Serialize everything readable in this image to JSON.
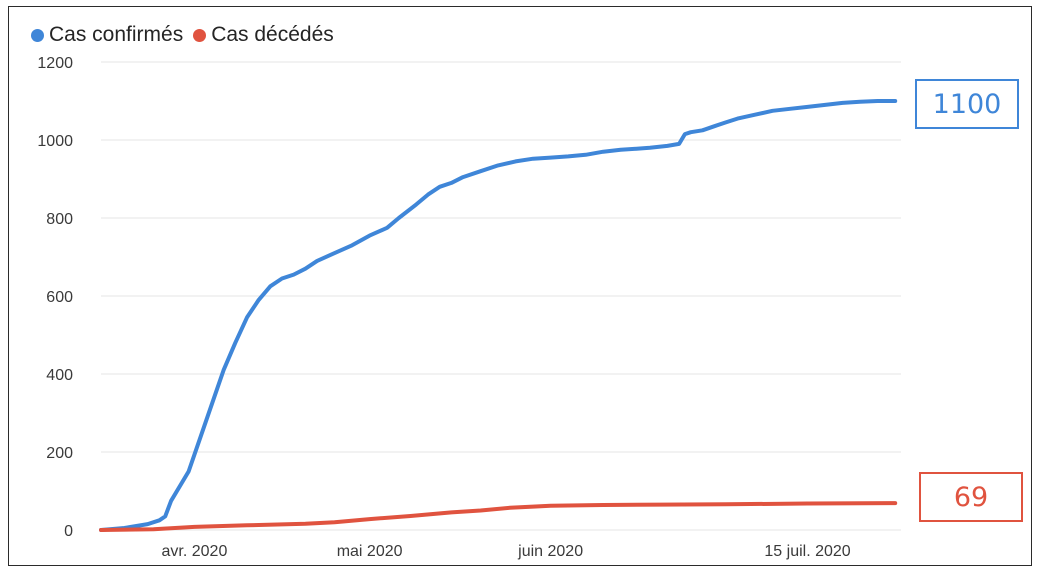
{
  "chart_data": {
    "type": "line",
    "title": "",
    "xlabel": "",
    "ylabel": "",
    "ylim": [
      0,
      1200
    ],
    "yticks": [
      0,
      200,
      400,
      600,
      800,
      1000,
      1200
    ],
    "xlim": [
      "2020-03-16",
      "2020-07-31"
    ],
    "xticks": [
      {
        "date": "2020-04-01",
        "label": "avr. 2020"
      },
      {
        "date": "2020-05-01",
        "label": "mai 2020"
      },
      {
        "date": "2020-06-01",
        "label": "juin 2020"
      },
      {
        "date": "2020-07-15",
        "label": "15  juil. 2020"
      }
    ],
    "grid": true,
    "legend_position": "top-left",
    "series": [
      {
        "name": "Cas confirmés",
        "color": "#3f86d8",
        "x": [
          "2020-03-16",
          "2020-03-20",
          "2020-03-24",
          "2020-03-26",
          "2020-03-27",
          "2020-03-28",
          "2020-03-31",
          "2020-04-03",
          "2020-04-06",
          "2020-04-08",
          "2020-04-10",
          "2020-04-12",
          "2020-04-14",
          "2020-04-16",
          "2020-04-18",
          "2020-04-20",
          "2020-04-22",
          "2020-04-25",
          "2020-04-28",
          "2020-05-01",
          "2020-05-04",
          "2020-05-06",
          "2020-05-09",
          "2020-05-11",
          "2020-05-13",
          "2020-05-15",
          "2020-05-17",
          "2020-05-20",
          "2020-05-23",
          "2020-05-26",
          "2020-05-29",
          "2020-06-01",
          "2020-06-04",
          "2020-06-07",
          "2020-06-10",
          "2020-06-13",
          "2020-06-16",
          "2020-06-18",
          "2020-06-21",
          "2020-06-23",
          "2020-06-24",
          "2020-06-25",
          "2020-06-27",
          "2020-06-29",
          "2020-07-01",
          "2020-07-03",
          "2020-07-06",
          "2020-07-09",
          "2020-07-12",
          "2020-07-15",
          "2020-07-18",
          "2020-07-21",
          "2020-07-24",
          "2020-07-27",
          "2020-07-30"
        ],
        "y": [
          0,
          5,
          15,
          25,
          35,
          75,
          150,
          280,
          410,
          480,
          545,
          590,
          625,
          645,
          655,
          670,
          690,
          710,
          730,
          755,
          775,
          800,
          835,
          860,
          880,
          890,
          905,
          920,
          935,
          945,
          952,
          955,
          958,
          962,
          970,
          975,
          978,
          980,
          985,
          990,
          1015,
          1020,
          1025,
          1035,
          1045,
          1055,
          1065,
          1075,
          1080,
          1085,
          1090,
          1095,
          1098,
          1100,
          1100
        ]
      },
      {
        "name": "Cas décédés",
        "color": "#e0533f",
        "x": [
          "2020-03-16",
          "2020-03-25",
          "2020-04-01",
          "2020-04-10",
          "2020-04-20",
          "2020-04-25",
          "2020-05-01",
          "2020-05-08",
          "2020-05-15",
          "2020-05-20",
          "2020-05-25",
          "2020-06-01",
          "2020-06-10",
          "2020-06-20",
          "2020-07-01",
          "2020-07-15",
          "2020-07-30"
        ],
        "y": [
          0,
          2,
          8,
          12,
          16,
          20,
          28,
          36,
          45,
          50,
          57,
          62,
          64,
          65,
          66,
          68,
          69
        ]
      }
    ],
    "annotations": [
      {
        "series": "Cas confirmés",
        "text": "1100"
      },
      {
        "series": "Cas décédés",
        "text": "69"
      }
    ]
  }
}
